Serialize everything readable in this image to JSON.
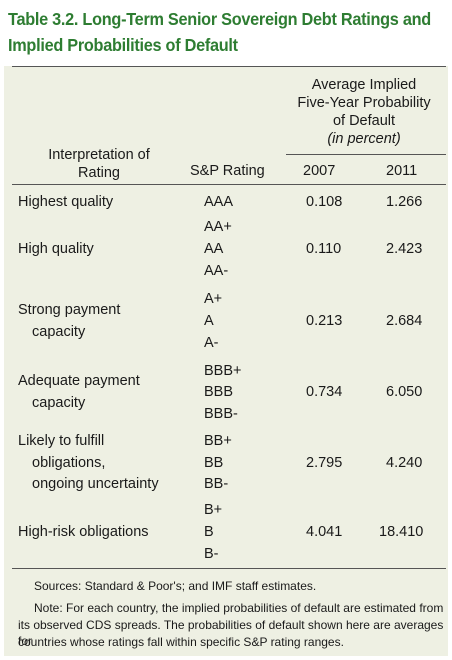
{
  "title": {
    "line1": "Table 3.2. Long-Term Senior Sovereign Debt Ratings and",
    "line2": "Implied Probabilities of Default"
  },
  "header": {
    "group": {
      "line1": "Average Implied",
      "line2": "Five-Year Probability",
      "line3": "of Default",
      "line4": "(in percent)"
    },
    "interpretation": {
      "line1": "Interpretation of",
      "line2": "Rating"
    },
    "sp_rating": "S&P Rating",
    "year1": "2007",
    "year2": "2011"
  },
  "rows": [
    {
      "interp": [
        "Highest quality"
      ],
      "ratings": [
        "AAA"
      ],
      "v2007": "0.108",
      "v2011": "1.266"
    },
    {
      "interp": [
        "High quality"
      ],
      "ratings": [
        "AA+",
        "AA",
        "AA-"
      ],
      "v2007": "0.110",
      "v2011": "2.423"
    },
    {
      "interp": [
        "Strong payment",
        "capacity"
      ],
      "ratings": [
        "A+",
        "A",
        "A-"
      ],
      "v2007": "0.213",
      "v2011": "2.684"
    },
    {
      "interp": [
        "Adequate payment",
        "capacity"
      ],
      "ratings": [
        "BBB+",
        "BBB",
        "BBB-"
      ],
      "v2007": "0.734",
      "v2011": "6.050"
    },
    {
      "interp": [
        "Likely to fulfill",
        "obligations,",
        "ongoing uncertainty"
      ],
      "ratings": [
        "BB+",
        "BB",
        "BB-"
      ],
      "v2007": "2.795",
      "v2011": "4.240"
    },
    {
      "interp": [
        "High-risk obligations"
      ],
      "ratings": [
        "B+",
        "B",
        "B-"
      ],
      "v2007": "4.041",
      "v2011": "18.410"
    }
  ],
  "notes": {
    "sources": "Sources: Standard & Poor's; and IMF staff estimates.",
    "note_line1": "Note: For each country, the implied probabilities of default are estimated from",
    "note_line2": "its observed CDS spreads. The probabilities of default shown here are averages for",
    "note_line3": "countries whose ratings fall within specific S&P rating ranges."
  },
  "colors": {
    "title": "#2e7d32",
    "panel": "#eef0e3",
    "rule": "#555555"
  }
}
